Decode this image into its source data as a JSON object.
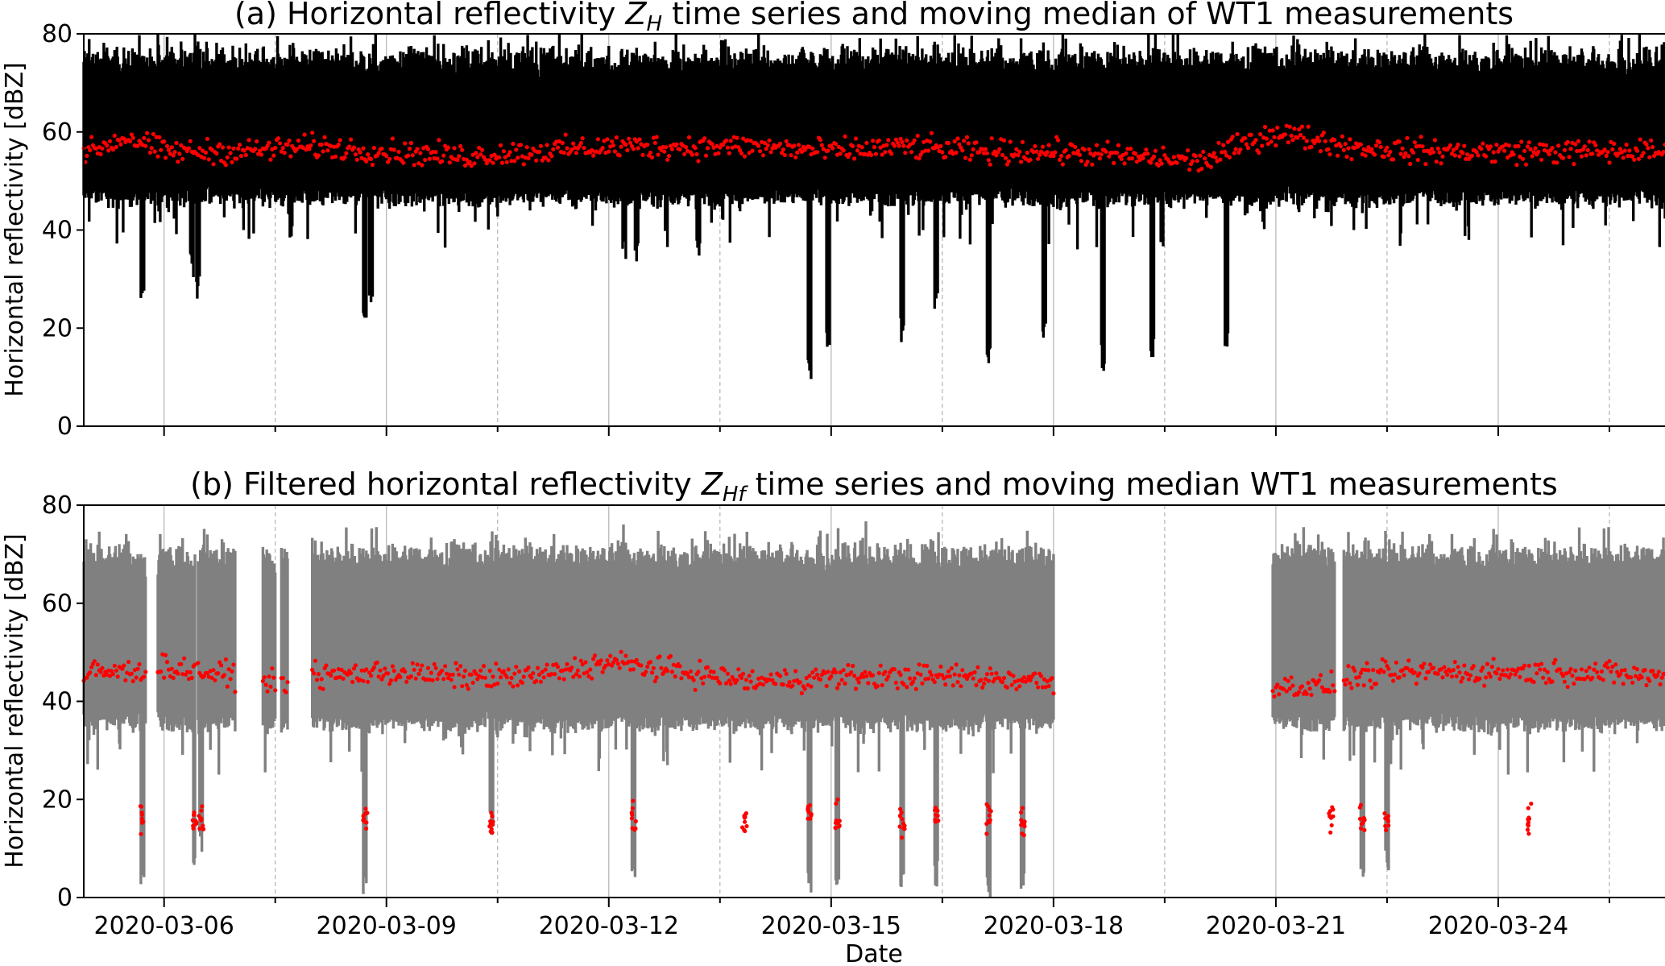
{
  "chart_data": [
    {
      "type": "scatter",
      "title_pre": "(a) Horizontal reflectivity ",
      "title_sym": "Z",
      "title_sub": "H",
      "title_post": " time series and moving median of WT1 measurements",
      "xlabel": "",
      "ylabel": "Horizontal reflectivity [dBZ]",
      "ylim": [
        0,
        80
      ],
      "yticks": [
        0,
        20,
        40,
        60,
        80
      ],
      "xlim": [
        "2020-03-04T22:00",
        "2020-03-26T06:00"
      ],
      "xticks": [
        "2020-03-06",
        "2020-03-09",
        "2020-03-12",
        "2020-03-15",
        "2020-03-18",
        "2020-03-21",
        "2020-03-24"
      ],
      "show_xtick_labels": false,
      "grid": {
        "x": "major solid, minor dashed",
        "y": false
      },
      "series": [
        {
          "role": "measurements",
          "color": "#000000",
          "value_range": [
            47,
            74
          ],
          "segments": [
            [
              "2020-03-04T22:00",
              "2020-03-26T06:00"
            ]
          ],
          "dips": [
            [
              "2020-03-05T17:00",
              24
            ],
            [
              "2020-03-06T09:00",
              30
            ],
            [
              "2020-03-06T11:00",
              26
            ],
            [
              "2020-03-07T17:00",
              38
            ],
            [
              "2020-03-08T17:00",
              19
            ],
            [
              "2020-03-08T19:00",
              24
            ],
            [
              "2020-03-12T05:00",
              34
            ],
            [
              "2020-03-12T09:00",
              33
            ],
            [
              "2020-03-13T05:00",
              32
            ],
            [
              "2020-03-14T17:00",
              9
            ],
            [
              "2020-03-14T23:00",
              15
            ],
            [
              "2020-03-15T23:00",
              17
            ],
            [
              "2020-03-16T10:00",
              22
            ],
            [
              "2020-03-17T03:00",
              12
            ],
            [
              "2020-03-17T21:00",
              18
            ],
            [
              "2020-03-18T16:00",
              11
            ],
            [
              "2020-03-19T08:00",
              14
            ],
            [
              "2020-03-20T08:00",
              15
            ]
          ]
        },
        {
          "role": "moving median",
          "color": "#ff0000",
          "median": [
            [
              "2020-03-05T00:00",
              56
            ],
            [
              "2020-03-05T12:00",
              59
            ],
            [
              "2020-03-06T00:00",
              56
            ],
            [
              "2020-03-07T00:00",
              56
            ],
            [
              "2020-03-08T00:00",
              57
            ],
            [
              "2020-03-09T00:00",
              56
            ],
            [
              "2020-03-10T00:00",
              55
            ],
            [
              "2020-03-11T00:00",
              56
            ],
            [
              "2020-03-12T00:00",
              57
            ],
            [
              "2020-03-13T00:00",
              57
            ],
            [
              "2020-03-14T00:00",
              57
            ],
            [
              "2020-03-15T00:00",
              56
            ],
            [
              "2020-03-16T00:00",
              57
            ],
            [
              "2020-03-17T00:00",
              56
            ],
            [
              "2020-03-18T00:00",
              56
            ],
            [
              "2020-03-19T00:00",
              55
            ],
            [
              "2020-03-20T00:00",
              54
            ],
            [
              "2020-03-21T00:00",
              60
            ],
            [
              "2020-03-22T00:00",
              57
            ],
            [
              "2020-03-23T00:00",
              56
            ],
            [
              "2020-03-24T00:00",
              56
            ],
            [
              "2020-03-25T00:00",
              56
            ],
            [
              "2020-03-26T06:00",
              56
            ]
          ]
        }
      ]
    },
    {
      "type": "scatter",
      "title_pre": "(b) Filtered horizontal reflectivity ",
      "title_sym": "Z",
      "title_sub": "Hf",
      "title_post": " time series and moving median WT1 measurements",
      "xlabel": "Date",
      "ylabel": "Horizontal reflectivity [dBZ]",
      "ylim": [
        0,
        80
      ],
      "yticks": [
        0,
        20,
        40,
        60,
        80
      ],
      "xlim": [
        "2020-03-04T22:00",
        "2020-03-26T06:00"
      ],
      "xticks": [
        "2020-03-06",
        "2020-03-09",
        "2020-03-12",
        "2020-03-15",
        "2020-03-18",
        "2020-03-21",
        "2020-03-24"
      ],
      "show_xtick_labels": true,
      "grid": {
        "x": "major solid, minor dashed",
        "y": false
      },
      "series": [
        {
          "role": "measurements",
          "color": "#808080",
          "value_range": [
            36,
            69
          ],
          "segments": [
            [
              "2020-03-04T22:00",
              "2020-03-05T18:00"
            ],
            [
              "2020-03-05T22:00",
              "2020-03-06T10:00"
            ],
            [
              "2020-03-06T11:00",
              "2020-03-06T23:00"
            ],
            [
              "2020-03-07T08:00",
              "2020-03-07T12:00"
            ],
            [
              "2020-03-07T14:00",
              "2020-03-07T16:00"
            ],
            [
              "2020-03-08T00:00",
              "2020-03-08T12:00"
            ],
            [
              "2020-03-08T12:30",
              "2020-03-18T00:00"
            ],
            [
              "2020-03-20T23:00",
              "2020-03-21T19:00"
            ],
            [
              "2020-03-21T22:00",
              "2020-03-26T06:00"
            ]
          ],
          "dips": [
            [
              "2020-03-05T17:00",
              0
            ],
            [
              "2020-03-06T10:00",
              3
            ],
            [
              "2020-03-06T12:00",
              8
            ],
            [
              "2020-03-08T17:00",
              0
            ],
            [
              "2020-03-10T10:00",
              12
            ],
            [
              "2020-03-12T08:00",
              3
            ],
            [
              "2020-03-14T17:00",
              0
            ],
            [
              "2020-03-15T02:00",
              0
            ],
            [
              "2020-03-15T23:00",
              0
            ],
            [
              "2020-03-16T10:00",
              2
            ],
            [
              "2020-03-17T03:00",
              0
            ],
            [
              "2020-03-17T14:00",
              0
            ],
            [
              "2020-03-22T04:00",
              3
            ],
            [
              "2020-03-22T12:00",
              5
            ]
          ]
        },
        {
          "role": "moving median",
          "color": "#ff0000",
          "median": [
            [
              "2020-03-05T00:00",
              46
            ],
            [
              "2020-03-05T12:00",
              46
            ],
            [
              "2020-03-06T00:00",
              47
            ],
            [
              "2020-03-06T12:00",
              46
            ],
            [
              "2020-03-07T12:00",
              44
            ],
            [
              "2020-03-08T00:00",
              45
            ],
            [
              "2020-03-09T00:00",
              46
            ],
            [
              "2020-03-10T00:00",
              45
            ],
            [
              "2020-03-11T00:00",
              45
            ],
            [
              "2020-03-12T00:00",
              48
            ],
            [
              "2020-03-13T00:00",
              46
            ],
            [
              "2020-03-14T00:00",
              44
            ],
            [
              "2020-03-15T00:00",
              45
            ],
            [
              "2020-03-16T00:00",
              45
            ],
            [
              "2020-03-17T00:00",
              45
            ],
            [
              "2020-03-18T00:00",
              44
            ],
            [
              "2020-03-21T00:00",
              43
            ],
            [
              "2020-03-21T18:00",
              43
            ],
            [
              "2020-03-22T00:00",
              45
            ],
            [
              "2020-03-23T00:00",
              46
            ],
            [
              "2020-03-24T00:00",
              46
            ],
            [
              "2020-03-25T00:00",
              46
            ],
            [
              "2020-03-26T06:00",
              45
            ]
          ],
          "low_cluster_value": 16,
          "low_clusters": [
            "2020-03-05T17:00",
            "2020-03-06T10:00",
            "2020-03-06T12:00",
            "2020-03-08T17:00",
            "2020-03-10T10:00",
            "2020-03-12T08:00",
            "2020-03-13T20:00",
            "2020-03-14T17:00",
            "2020-03-15T02:00",
            "2020-03-15T23:00",
            "2020-03-16T10:00",
            "2020-03-17T03:00",
            "2020-03-17T14:00",
            "2020-03-21T18:00",
            "2020-03-22T04:00",
            "2020-03-22T12:00",
            "2020-03-24T10:00"
          ]
        }
      ]
    }
  ]
}
